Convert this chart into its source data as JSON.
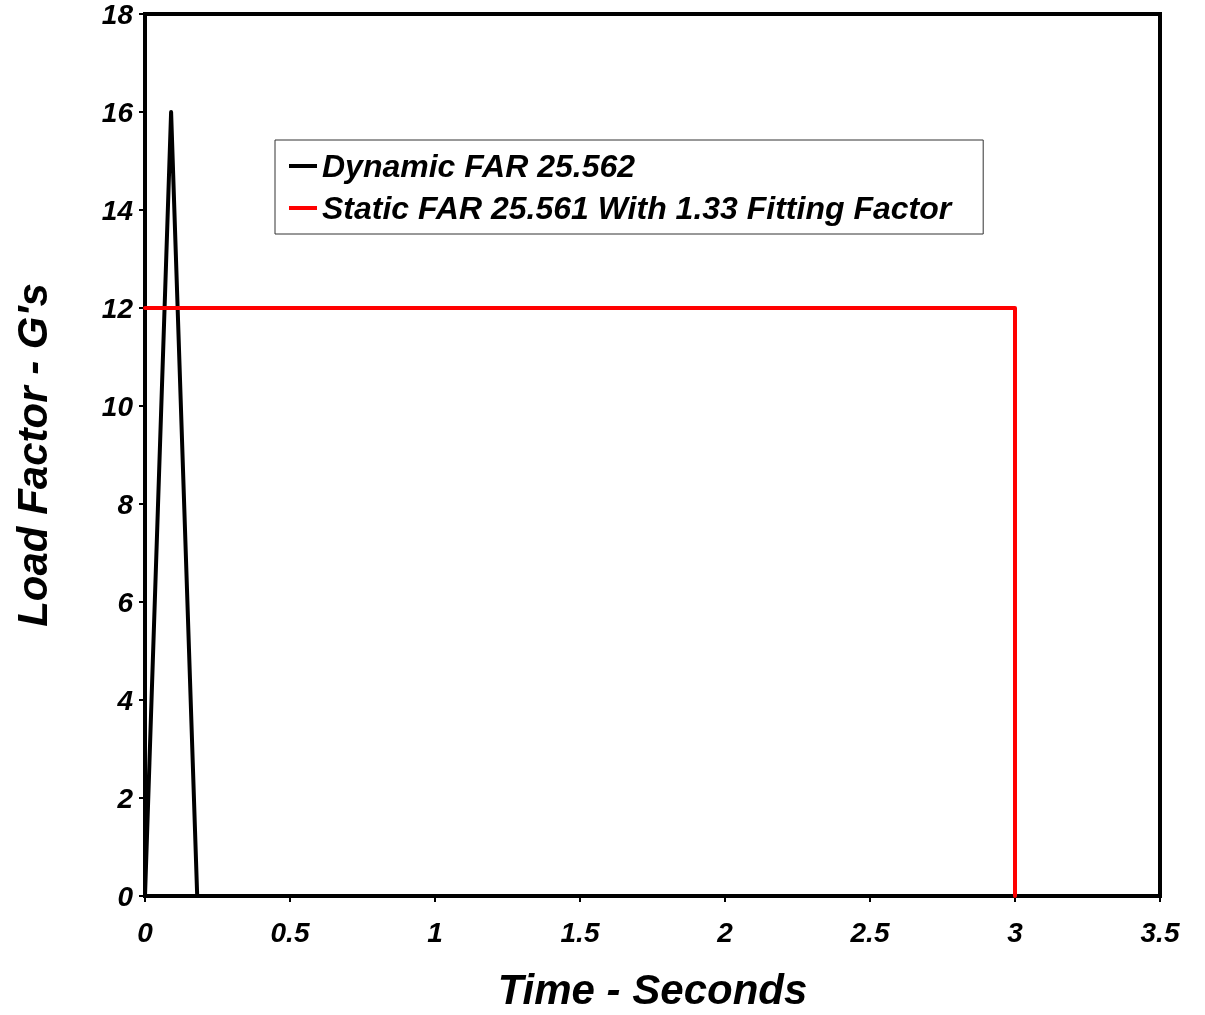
{
  "chart_data": {
    "type": "line",
    "xlabel": "Time - Seconds",
    "ylabel": "Load Factor - G's",
    "xlim": [
      0,
      3.5
    ],
    "xticks": [
      0,
      0.5,
      1,
      1.5,
      2,
      2.5,
      3,
      3.5
    ],
    "ylim": [
      0,
      18
    ],
    "yticks": [
      0,
      2,
      4,
      6,
      8,
      10,
      12,
      14,
      16,
      18
    ],
    "grid": false,
    "legend": "top",
    "marker": "none",
    "line_style": "solid",
    "series": [
      {
        "name": "Dynamic FAR 25.562",
        "color": "#000000",
        "x": [
          0,
          0.09,
          0.18
        ],
        "values": [
          0,
          16,
          0
        ]
      },
      {
        "name": "Static FAR 25.561 With 1.33 Fitting Factor",
        "color": "#ff0000",
        "x": [
          0,
          3,
          3
        ],
        "values": [
          12,
          12,
          0
        ]
      }
    ]
  }
}
